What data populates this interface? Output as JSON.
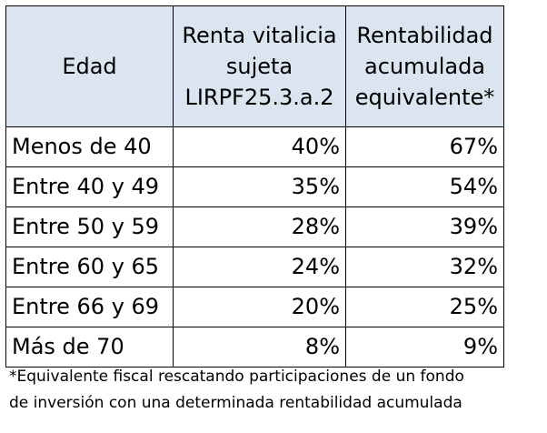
{
  "table": {
    "headers": [
      {
        "lines": [
          "Edad"
        ]
      },
      {
        "lines": [
          "Renta vitalicia",
          "sujeta",
          "LIRPF25.3.a.2"
        ]
      },
      {
        "lines": [
          "Rentabilidad",
          "acumulada",
          "equivalente*"
        ]
      }
    ],
    "rows": [
      {
        "age": "Menos de 40",
        "renta": "40%",
        "rentabilidad": "67%"
      },
      {
        "age": "Entre 40 y 49",
        "renta": "35%",
        "rentabilidad": "54%"
      },
      {
        "age": "Entre 50 y 59",
        "renta": "28%",
        "rentabilidad": "39%"
      },
      {
        "age": "Entre 60 y 65",
        "renta": "24%",
        "rentabilidad": "32%"
      },
      {
        "age": "Entre 66 y 69",
        "renta": "20%",
        "rentabilidad": "25%"
      },
      {
        "age": "Más de 70",
        "renta": "8%",
        "rentabilidad": "9%"
      }
    ]
  },
  "footnote": {
    "line1": "*Equivalente fiscal rescatando participaciones de un fondo",
    "line2": "de inversión con una determinada rentabilidad acumulada"
  },
  "colors": {
    "header_bg": "#dbe5f1",
    "border": "#000000",
    "text": "#000000"
  }
}
